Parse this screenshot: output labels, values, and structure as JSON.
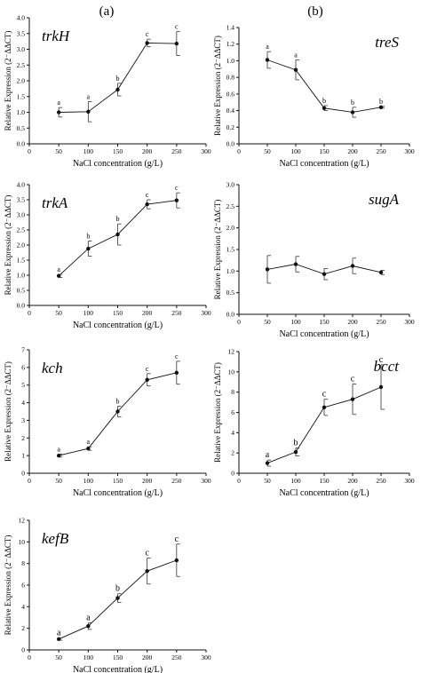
{
  "figure": {
    "column_labels": [
      "(a)",
      "(b)"
    ]
  },
  "chart_data": [
    {
      "id": "trkH",
      "type": "line",
      "title": "trkH",
      "xlabel": "NaCl concentration (g/L)",
      "ylabel": "Relative Expression (2⁻ΔΔCT)",
      "xlim": [
        0,
        300
      ],
      "ylim": [
        0,
        4.0
      ],
      "xticks": [
        "0",
        "50",
        "100",
        "150",
        "200",
        "250",
        "300"
      ],
      "yticks": [
        "0.0",
        "0.5",
        "1.0",
        "1.5",
        "2.0",
        "2.5",
        "3.0",
        "3.5",
        "4.0"
      ],
      "x": [
        50,
        100,
        150,
        200,
        250
      ],
      "y": [
        1.0,
        1.02,
        1.72,
        3.2,
        3.18
      ],
      "err": [
        0.15,
        0.32,
        0.2,
        0.12,
        0.38
      ],
      "sig": [
        "a",
        "a",
        "b",
        "c",
        "c"
      ]
    },
    {
      "id": "treS",
      "type": "line",
      "title": "treS",
      "xlabel": "NaCl concentration (g/L)",
      "ylabel": "Relative Expression (2⁻ΔΔCT)",
      "xlim": [
        0,
        300
      ],
      "ylim": [
        0,
        1.4
      ],
      "xticks": [
        "0",
        "50",
        "100",
        "150",
        "200",
        "250",
        "300"
      ],
      "yticks": [
        "0.0",
        "0.2",
        "0.4",
        "0.6",
        "0.8",
        "1.0",
        "1.2",
        "1.4"
      ],
      "x": [
        50,
        100,
        150,
        200,
        250
      ],
      "y": [
        1.01,
        0.89,
        0.43,
        0.38,
        0.44
      ],
      "err": [
        0.1,
        0.12,
        0.03,
        0.06,
        0.01
      ],
      "sig": [
        "a",
        "a",
        "b",
        "b",
        "b"
      ]
    },
    {
      "id": "trkA",
      "type": "line",
      "title": "trkA",
      "xlabel": "NaCl concentration (g/L)",
      "ylabel": "Relative Expression (2⁻ΔΔCT)",
      "xlim": [
        0,
        300
      ],
      "ylim": [
        0,
        4.0
      ],
      "xticks": [
        "0",
        "50",
        "100",
        "150",
        "200",
        "250",
        "300"
      ],
      "yticks": [
        "0.0",
        "0.5",
        "1.0",
        "1.5",
        "2.0",
        "2.5",
        "3.0",
        "3.5",
        "4.0"
      ],
      "x": [
        50,
        100,
        150,
        200,
        250
      ],
      "y": [
        0.98,
        1.88,
        2.35,
        3.35,
        3.48
      ],
      "err": [
        0.05,
        0.25,
        0.35,
        0.15,
        0.25
      ],
      "sig": [
        "a",
        "b",
        "b",
        "c",
        "c"
      ]
    },
    {
      "id": "sugA",
      "type": "line",
      "title": "sugA",
      "xlabel": "NaCl concentration (g/L)",
      "ylabel": "Relative Expression (2⁻ΔΔCT)",
      "xlim": [
        0,
        300
      ],
      "ylim": [
        0,
        3.0
      ],
      "xticks": [
        "0",
        "50",
        "100",
        "150",
        "200",
        "250",
        "300"
      ],
      "yticks": [
        "0.0",
        "0.5",
        "1.0",
        "1.5",
        "2.0",
        "2.5",
        "3.0"
      ],
      "x": [
        50,
        100,
        150,
        200,
        250
      ],
      "y": [
        1.04,
        1.16,
        0.93,
        1.12,
        0.97
      ],
      "err": [
        0.32,
        0.18,
        0.13,
        0.18,
        0.05
      ],
      "sig": []
    },
    {
      "id": "kch",
      "type": "line",
      "title": "kch",
      "xlabel": "NaCl concentration (g/L)",
      "ylabel": "Relative Expression (2⁻ΔΔCT)",
      "xlim": [
        0,
        300
      ],
      "ylim": [
        0,
        7
      ],
      "xticks": [
        "0",
        "50",
        "100",
        "150",
        "200",
        "250",
        "300"
      ],
      "yticks": [
        "0",
        "1",
        "2",
        "3",
        "4",
        "5",
        "6",
        "7"
      ],
      "x": [
        50,
        100,
        150,
        200,
        250
      ],
      "y": [
        1.0,
        1.4,
        3.5,
        5.3,
        5.7
      ],
      "err": [
        0.08,
        0.1,
        0.3,
        0.35,
        0.65
      ],
      "sig": [
        "a",
        "a",
        "b",
        "c",
        "c"
      ]
    },
    {
      "id": "bcct",
      "type": "line",
      "title": "bcct",
      "xlabel": "NaCl concentration (g/L)",
      "ylabel": "Relative Expression (2⁻ΔΔCT)",
      "xlim": [
        0,
        300
      ],
      "ylim": [
        0,
        12
      ],
      "xticks": [
        "0",
        "50",
        "100",
        "150",
        "200",
        "250",
        "300"
      ],
      "yticks": [
        "0",
        "2",
        "4",
        "6",
        "8",
        "10",
        "12"
      ],
      "x": [
        50,
        100,
        150,
        200,
        250
      ],
      "y": [
        1.0,
        2.1,
        6.5,
        7.3,
        8.5
      ],
      "err": [
        0.3,
        0.4,
        0.8,
        1.5,
        2.2
      ],
      "sig": [
        "a",
        "b",
        "c",
        "c",
        "c"
      ]
    },
    {
      "id": "kefB",
      "type": "line",
      "title": "kefB",
      "xlabel": "NaCl concentration (g/L)",
      "ylabel": "Relative Expression (2⁻ΔΔCT)",
      "xlim": [
        0,
        300
      ],
      "ylim": [
        0,
        12
      ],
      "xticks": [
        "0",
        "50",
        "100",
        "150",
        "200",
        "250",
        "300"
      ],
      "yticks": [
        "0",
        "2",
        "4",
        "6",
        "8",
        "10",
        "12"
      ],
      "x": [
        50,
        100,
        150,
        200,
        250
      ],
      "y": [
        1.0,
        2.2,
        4.8,
        7.3,
        8.3
      ],
      "err": [
        0.1,
        0.3,
        0.4,
        1.2,
        1.5
      ],
      "sig": [
        "a",
        "a",
        "b",
        "c",
        "c"
      ]
    }
  ]
}
